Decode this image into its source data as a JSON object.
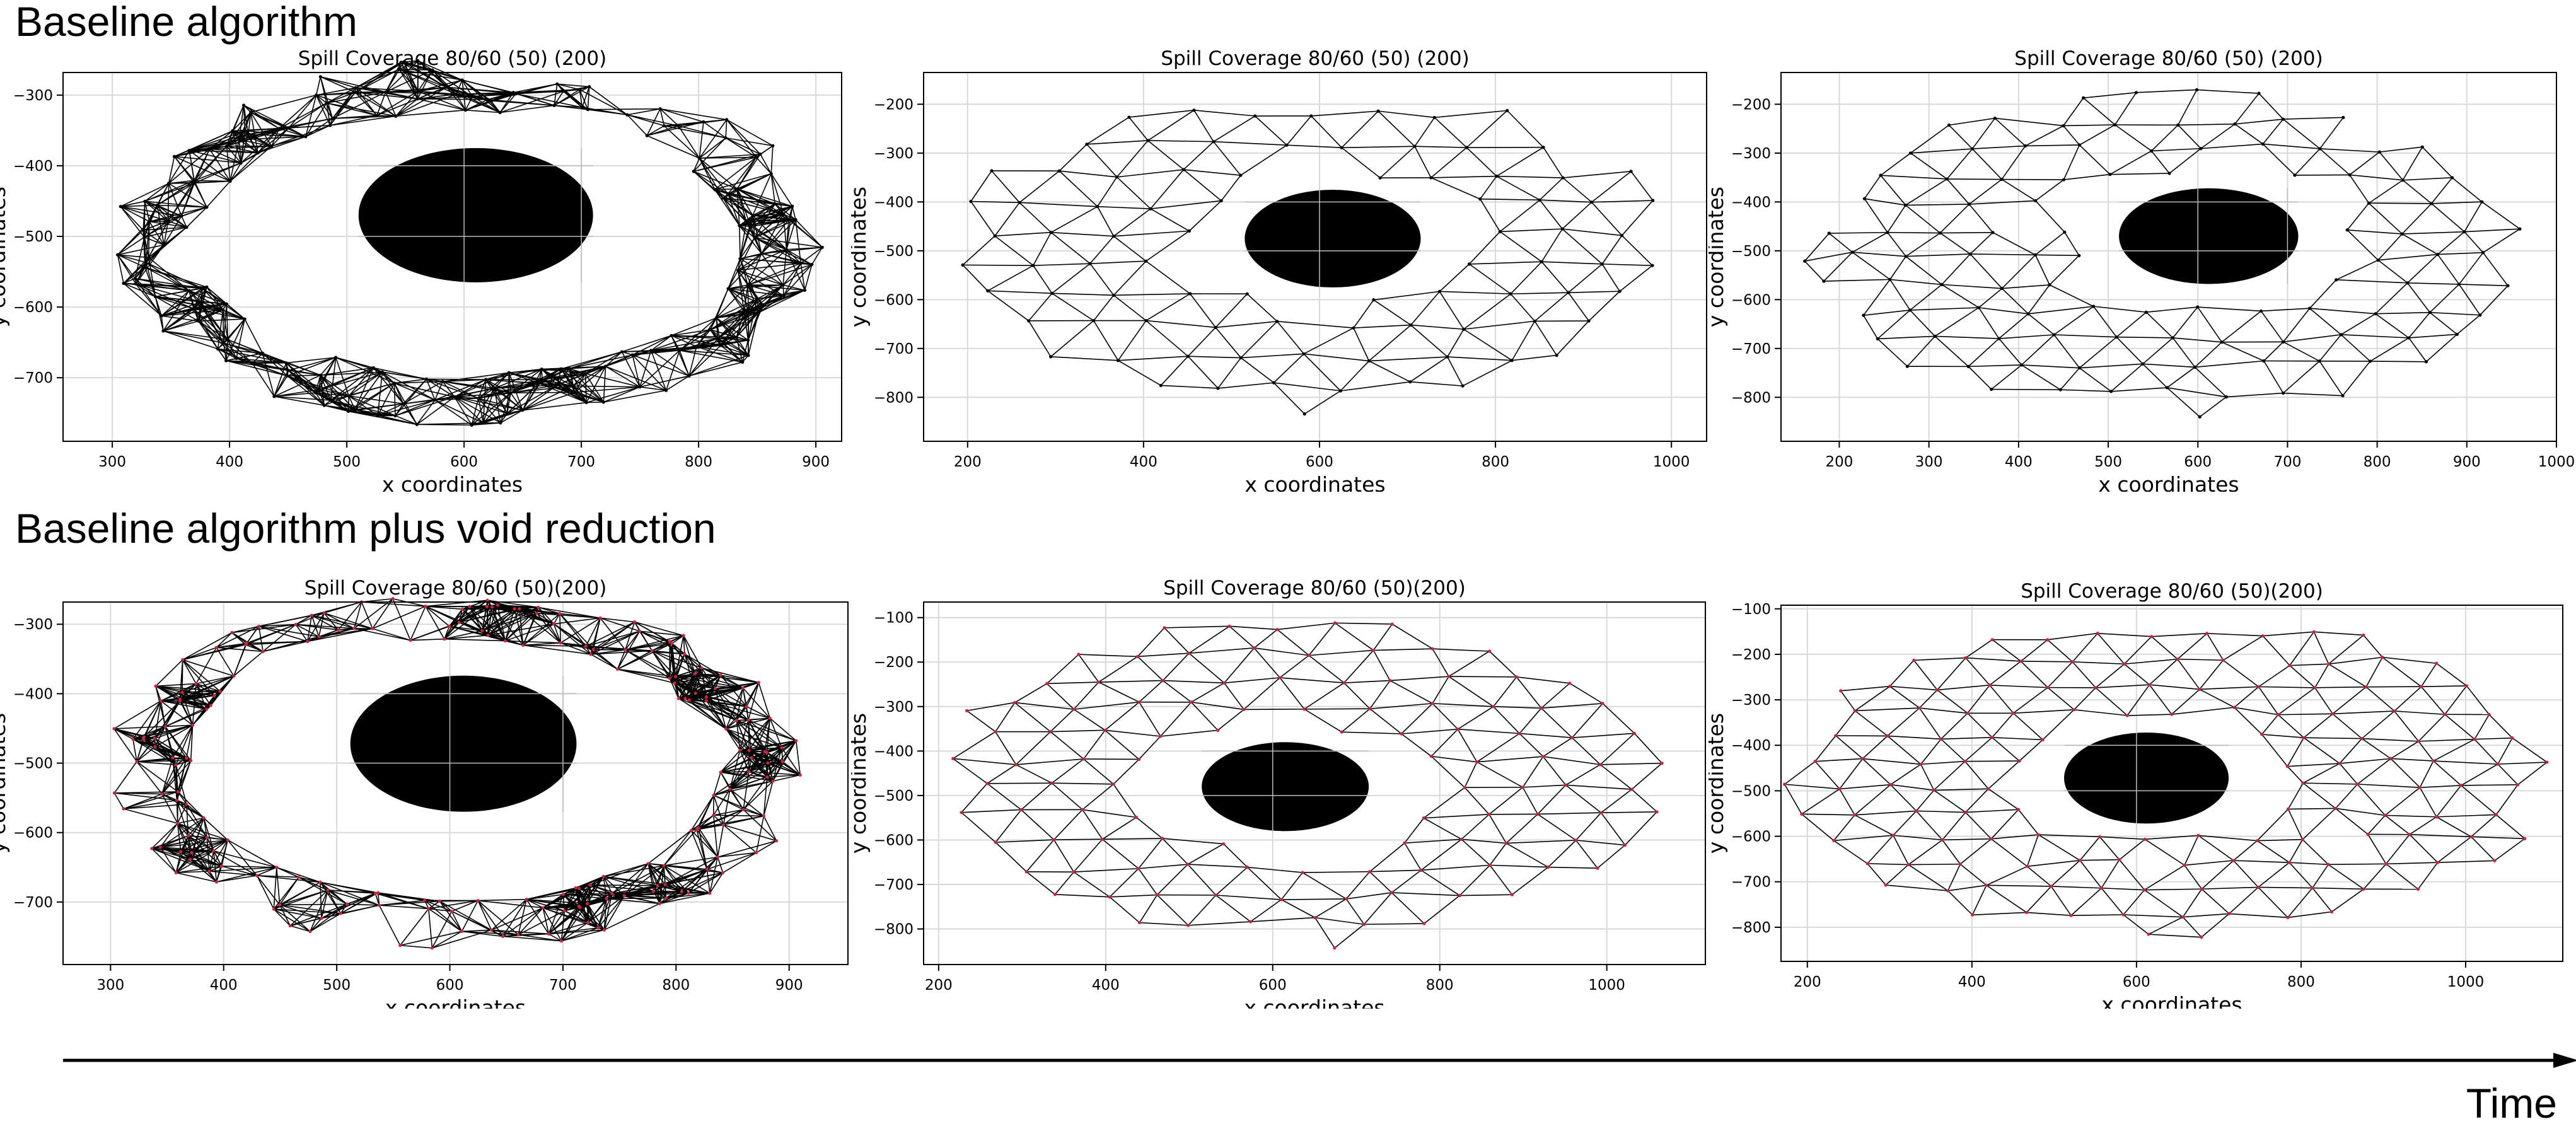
{
  "headings": {
    "top": "Baseline algorithm",
    "bottom": "Baseline algorithm plus void reduction",
    "time": "Time"
  },
  "colors": {
    "edge": "#000000",
    "node_red": "#d0213d",
    "obstacle": "#000000",
    "grid": "#d9d9d9"
  },
  "chart_data": [
    {
      "type": "scatter",
      "title": "Spill Coverage 80/60 (50) (200)",
      "xlabel": "x coordinates",
      "ylabel": "y coordinates",
      "xlim": [
        258,
        922
      ],
      "ylim": [
        -790,
        -268
      ],
      "xticks": [
        300,
        400,
        500,
        600,
        700,
        800,
        900
      ],
      "yticks": [
        -300,
        -400,
        -500,
        -600,
        -700
      ],
      "grid": true,
      "obstacle": {
        "cx": 610,
        "cy": -470,
        "rx": 100,
        "ry": 95
      },
      "network": {
        "layout": "dense-ring",
        "center": [
          605,
          -510
        ],
        "outer": [
          305,
          262
        ],
        "inner": [
          230,
          182
        ],
        "nodes": 200,
        "seed": 11
      },
      "node_color": "black"
    },
    {
      "type": "scatter",
      "title": "Spill Coverage 80/60 (50) (200)",
      "xlabel": "x coordinates",
      "ylabel": "y coordinates",
      "xlim": [
        150,
        1040
      ],
      "ylim": [
        -890,
        -135
      ],
      "xticks": [
        200,
        400,
        600,
        800,
        1000
      ],
      "yticks": [
        -200,
        -300,
        -400,
        -500,
        -600,
        -700,
        -800
      ],
      "grid": true,
      "obstacle": {
        "cx": 615,
        "cy": -475,
        "rx": 100,
        "ry": 100
      },
      "network": {
        "layout": "lattice",
        "center": [
          590,
          -500
        ],
        "outer": [
          430,
          340
        ],
        "inner": [
          150,
          130
        ],
        "spacing": 72,
        "seed": 23
      },
      "node_color": "black"
    },
    {
      "type": "scatter",
      "title": "Spill Coverage 80/60 (50) (200)",
      "xlabel": "x coordinates",
      "ylabel": "y coordinates",
      "xlim": [
        135,
        1000
      ],
      "ylim": [
        -890,
        -135
      ],
      "xticks": [
        200,
        300,
        400,
        500,
        600,
        700,
        800,
        900,
        1000
      ],
      "yticks": [
        -200,
        -300,
        -400,
        -500,
        -600,
        -700,
        -800
      ],
      "grid": true,
      "obstacle": {
        "cx": 612,
        "cy": -470,
        "rx": 100,
        "ry": 98
      },
      "network": {
        "layout": "lattice",
        "center": [
          565,
          -500
        ],
        "outer": [
          410,
          345
        ],
        "inner": [
          150,
          130
        ],
        "spacing": 64,
        "seed": 37
      },
      "node_color": "black"
    },
    {
      "type": "scatter",
      "title": "Spill Coverage 80/60 (50)(200)",
      "xlabel": "x coordinates",
      "ylabel": "y coordinates",
      "xlim": [
        258,
        952
      ],
      "ylim": [
        -790,
        -268
      ],
      "xticks": [
        300,
        400,
        500,
        600,
        700,
        800,
        900
      ],
      "yticks": [
        -300,
        -400,
        -500,
        -600,
        -700
      ],
      "grid": true,
      "obstacle": {
        "cx": 612,
        "cy": -472,
        "rx": 100,
        "ry": 98
      },
      "network": {
        "layout": "dense-ring",
        "center": [
          605,
          -510
        ],
        "outer": [
          310,
          262
        ],
        "inner": [
          232,
          182
        ],
        "nodes": 200,
        "seed": 53
      },
      "node_color": "red"
    },
    {
      "type": "scatter",
      "title": "Spill Coverage 80/60 (50)(200)",
      "xlabel": "x coordinates",
      "ylabel": "y coordinates",
      "xlim": [
        182,
        1118
      ],
      "ylim": [
        -880,
        -65
      ],
      "xticks": [
        200,
        400,
        600,
        800,
        1000
      ],
      "yticks": [
        -100,
        -200,
        -300,
        -400,
        -500,
        -600,
        -700,
        -800
      ],
      "grid": true,
      "obstacle": {
        "cx": 615,
        "cy": -480,
        "rx": 100,
        "ry": 100
      },
      "network": {
        "layout": "lattice",
        "center": [
          630,
          -470
        ],
        "outer": [
          440,
          375
        ],
        "inner": [
          150,
          130
        ],
        "spacing": 70,
        "seed": 71
      },
      "node_color": "red"
    },
    {
      "type": "scatter",
      "title": "Spill Coverage 80/60 (50)(200)",
      "xlabel": "x coordinates",
      "ylabel": "y coordinates",
      "xlim": [
        168,
        1118
      ],
      "ylim": [
        -875,
        -92
      ],
      "xticks": [
        200,
        400,
        600,
        800,
        1000
      ],
      "yticks": [
        -100,
        -200,
        -300,
        -400,
        -500,
        -600,
        -700,
        -800
      ],
      "grid": true,
      "obstacle": {
        "cx": 612,
        "cy": -472,
        "rx": 100,
        "ry": 100
      },
      "network": {
        "layout": "lattice",
        "center": [
          640,
          -465
        ],
        "outer": [
          470,
          360
        ],
        "inner": [
          150,
          130
        ],
        "spacing": 64,
        "seed": 89
      },
      "node_color": "red"
    }
  ]
}
